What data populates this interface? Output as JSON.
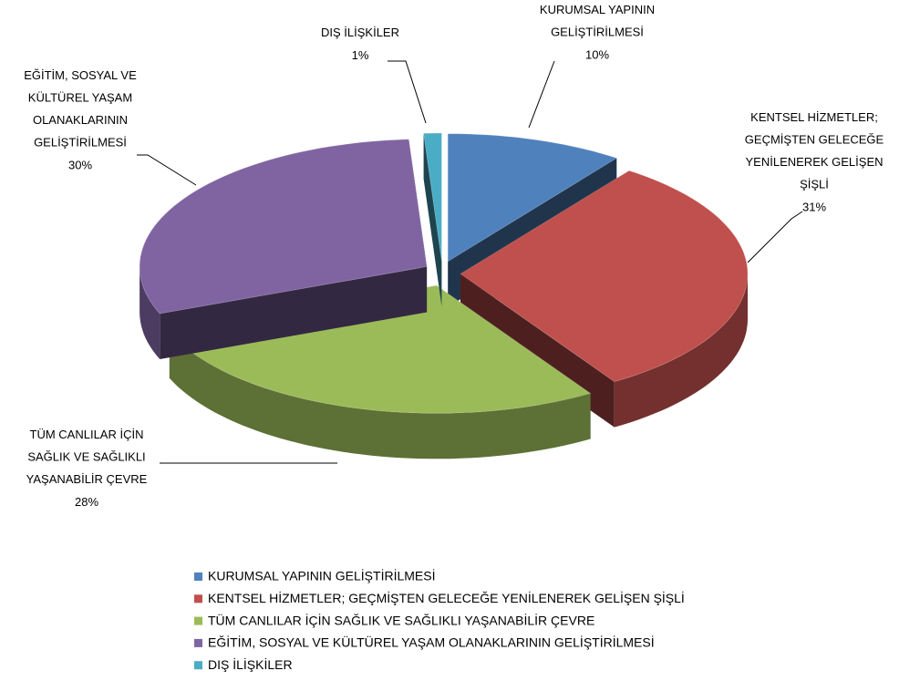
{
  "chart_data": {
    "type": "pie3d",
    "categories": [
      "KURUMSAL YAPININ GELİŞTİRİLMESİ",
      "KENTSEL HİZMETLER; GEÇMİŞTEN GELECEĞE YENİLENEREK GELİŞEN ŞİŞLİ",
      "TÜM CANLILAR İÇİN SAĞLIK VE SAĞLIKLI YAŞANABİLİR ÇEVRE",
      "EĞİTİM, SOSYAL VE KÜLTÜREL YAŞAM OLANAKLARININ GELİŞTİRİLMESİ",
      "DIŞ İLİŞKİLER"
    ],
    "values": [
      10,
      31,
      28,
      30,
      1
    ],
    "value_labels": [
      "10%",
      "31%",
      "28%",
      "30%",
      "1%"
    ],
    "colors": [
      "#4f81bd",
      "#c0504d",
      "#9bbb59",
      "#8064a2",
      "#4bacc6"
    ],
    "legend": "bottom"
  }
}
